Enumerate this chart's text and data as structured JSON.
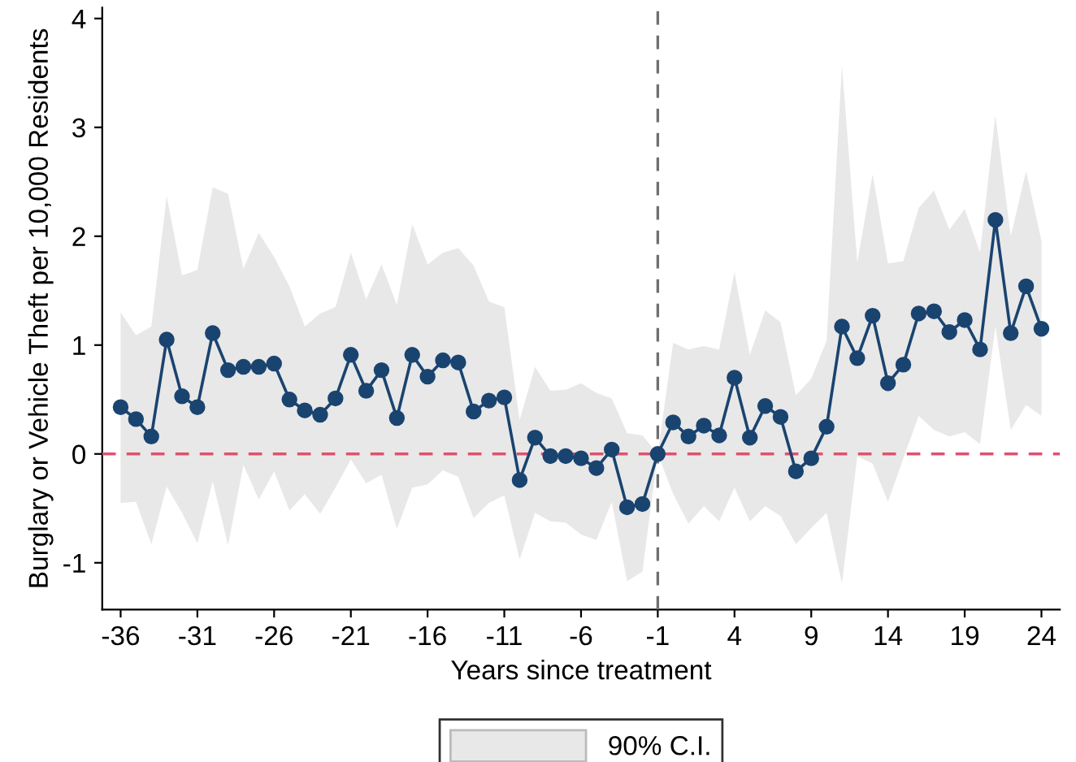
{
  "chart_data": {
    "type": "line",
    "xlabel": "Years since treatment",
    "ylabel": "Burglary or Vehicle Theft per 10,000 Residents",
    "legend_title": "90% C.I.",
    "x": [
      -36,
      -35,
      -34,
      -33,
      -32,
      -31,
      -30,
      -29,
      -28,
      -27,
      -26,
      -25,
      -24,
      -23,
      -22,
      -21,
      -20,
      -19,
      -18,
      -17,
      -16,
      -15,
      -14,
      -13,
      -12,
      -11,
      -10,
      -9,
      -8,
      -7,
      -6,
      -5,
      -4,
      -3,
      -2,
      -1,
      0,
      1,
      2,
      3,
      4,
      5,
      6,
      7,
      8,
      9,
      10,
      11,
      12,
      13,
      14,
      15,
      16,
      17,
      18,
      19,
      20,
      21,
      22,
      23,
      24
    ],
    "series": [
      {
        "color": "#1a4470",
        "marker": "circle",
        "values": [
          0.43,
          0.32,
          0.16,
          1.05,
          0.53,
          0.43,
          1.11,
          0.77,
          0.8,
          0.8,
          0.83,
          0.5,
          0.4,
          0.36,
          0.51,
          0.91,
          0.58,
          0.77,
          0.33,
          0.91,
          0.71,
          0.86,
          0.84,
          0.39,
          0.49,
          0.52,
          -0.24,
          0.15,
          -0.02,
          -0.02,
          -0.04,
          -0.13,
          0.04,
          -0.49,
          -0.46,
          0,
          0.29,
          0.16,
          0.26,
          0.17,
          0.7,
          0.15,
          0.44,
          0.34,
          -0.16,
          -0.04,
          0.25,
          1.17,
          0.88,
          1.27,
          0.65,
          0.82,
          1.29,
          1.31,
          1.12,
          1.23,
          0.96,
          2.15,
          1.11,
          1.54,
          1.15
        ],
        "upper": [
          1.3,
          1.09,
          1.17,
          2.37,
          1.64,
          1.69,
          2.45,
          2.39,
          1.7,
          2.03,
          1.81,
          1.54,
          1.17,
          1.29,
          1.35,
          1.85,
          1.42,
          1.74,
          1.37,
          2.11,
          1.74,
          1.85,
          1.89,
          1.73,
          1.4,
          1.35,
          0.31,
          0.8,
          0.58,
          0.59,
          0.65,
          0.56,
          0.51,
          0.19,
          0.17,
          0,
          1.02,
          0.96,
          0.99,
          0.96,
          1.67,
          0.91,
          1.32,
          1.21,
          0.54,
          0.69,
          1.04,
          3.57,
          1.76,
          2.57,
          1.75,
          1.77,
          2.26,
          2.42,
          2.06,
          2.25,
          1.85,
          3.11,
          2.0,
          2.6,
          1.96
        ],
        "lower": [
          -0.45,
          -0.44,
          -0.83,
          -0.3,
          -0.54,
          -0.82,
          -0.25,
          -0.84,
          -0.1,
          -0.42,
          -0.16,
          -0.52,
          -0.37,
          -0.55,
          -0.31,
          -0.05,
          -0.27,
          -0.19,
          -0.69,
          -0.31,
          -0.28,
          -0.15,
          -0.21,
          -0.59,
          -0.45,
          -0.38,
          -0.97,
          -0.54,
          -0.62,
          -0.63,
          -0.74,
          -0.79,
          -0.44,
          -1.17,
          -1.08,
          0,
          -0.37,
          -0.64,
          -0.48,
          -0.62,
          -0.31,
          -0.62,
          -0.48,
          -0.57,
          -0.83,
          -0.68,
          -0.54,
          -1.19,
          -0.02,
          -0.09,
          -0.44,
          -0.04,
          0.35,
          0.22,
          0.16,
          0.2,
          0.09,
          1.17,
          0.22,
          0.45,
          0.35
        ]
      }
    ],
    "xlim": [
      -37.2,
      25.2
    ],
    "ylim": [
      -1.43,
      4.1
    ],
    "xticks": [
      -36,
      -31,
      -26,
      -21,
      -16,
      -11,
      -6,
      -1,
      4,
      9,
      14,
      19,
      24
    ],
    "yticks": [
      -1,
      0,
      1,
      2,
      3,
      4
    ],
    "ref_lines": [
      {
        "axis": "y",
        "value": 0,
        "color": "#e0506e",
        "line_style": "dashed"
      },
      {
        "axis": "x",
        "value": -1,
        "color": "#707070",
        "line_style": "dashed"
      }
    ],
    "grid": false,
    "line_style": "solid"
  }
}
